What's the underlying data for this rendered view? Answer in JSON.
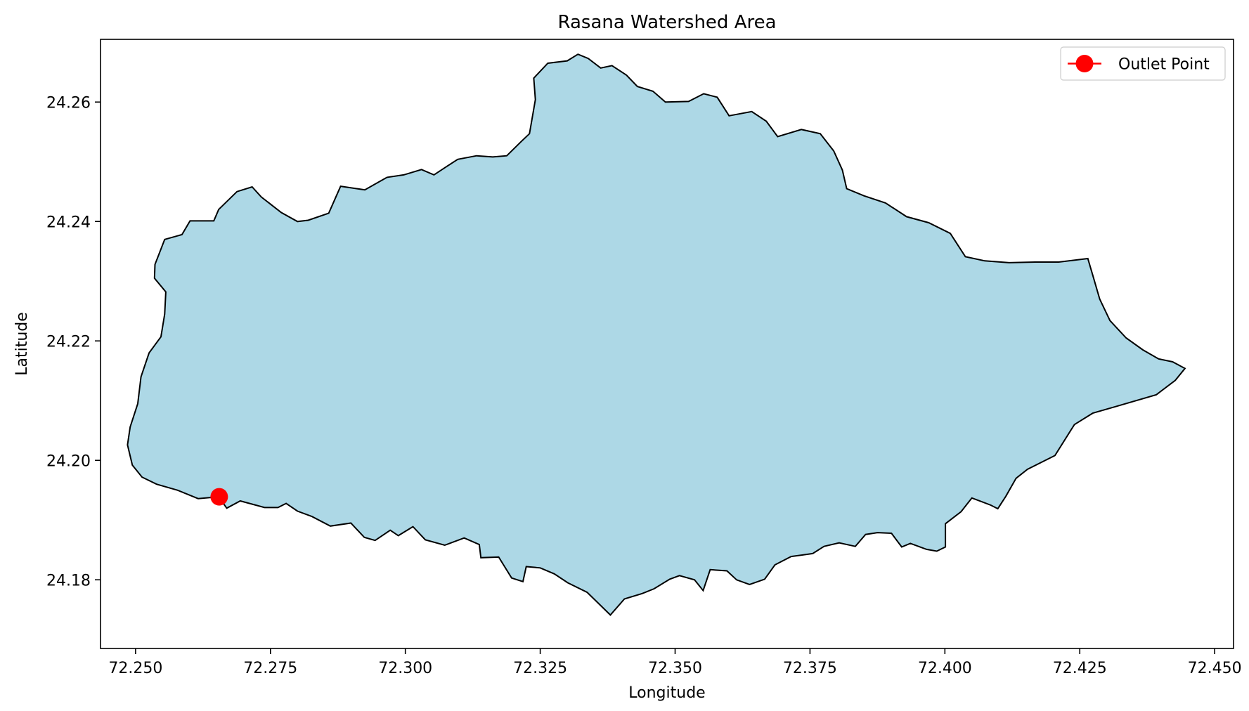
{
  "chart_data": {
    "type": "map",
    "title": "Rasana Watershed Area",
    "xlabel": "Longitude",
    "ylabel": "Latitude",
    "xlim": [
      72.2435,
      72.4535
    ],
    "ylim": [
      24.1685,
      24.2705
    ],
    "xticks": [
      72.25,
      72.275,
      72.3,
      72.325,
      72.35,
      72.375,
      72.4,
      72.425,
      72.45
    ],
    "xtick_labels": [
      "72.250",
      "72.275",
      "72.300",
      "72.325",
      "72.350",
      "72.375",
      "72.400",
      "72.425",
      "72.450"
    ],
    "yticks": [
      24.18,
      24.2,
      24.22,
      24.24,
      24.26
    ],
    "ytick_labels": [
      "24.18",
      "24.20",
      "24.22",
      "24.24",
      "24.26"
    ],
    "grid": false,
    "legend_position": "top-right",
    "watershed": {
      "fill_color": "#add8e6",
      "edge_color": "#000000",
      "boundary": [
        [
          72.2654,
          24.1939
        ],
        [
          72.2669,
          24.192
        ],
        [
          72.2694,
          24.1932
        ],
        [
          72.2739,
          24.1921
        ],
        [
          72.2764,
          24.1921
        ],
        [
          72.2779,
          24.1928
        ],
        [
          72.28,
          24.1915
        ],
        [
          72.2827,
          24.1906
        ],
        [
          72.2861,
          24.189
        ],
        [
          72.2899,
          24.1895
        ],
        [
          72.2924,
          24.1871
        ],
        [
          72.2944,
          24.1866
        ],
        [
          72.2972,
          24.1883
        ],
        [
          72.2987,
          24.1874
        ],
        [
          72.3014,
          24.1889
        ],
        [
          72.3037,
          24.1867
        ],
        [
          72.3073,
          24.1858
        ],
        [
          72.3109,
          24.187
        ],
        [
          72.3137,
          24.1859
        ],
        [
          72.314,
          24.1837
        ],
        [
          72.3173,
          24.1838
        ],
        [
          72.3197,
          24.1803
        ],
        [
          72.3218,
          24.1797
        ],
        [
          72.3224,
          24.1822
        ],
        [
          72.325,
          24.182
        ],
        [
          72.3276,
          24.181
        ],
        [
          72.3301,
          24.1795
        ],
        [
          72.3337,
          24.1779
        ],
        [
          72.338,
          24.1741
        ],
        [
          72.3406,
          24.1768
        ],
        [
          72.3439,
          24.1777
        ],
        [
          72.3461,
          24.1785
        ],
        [
          72.349,
          24.1801
        ],
        [
          72.3508,
          24.1807
        ],
        [
          72.3536,
          24.18
        ],
        [
          72.3552,
          24.1782
        ],
        [
          72.3565,
          24.1817
        ],
        [
          72.3596,
          24.1815
        ],
        [
          72.3614,
          24.18
        ],
        [
          72.3638,
          24.1792
        ],
        [
          72.3666,
          24.1801
        ],
        [
          72.3685,
          24.1825
        ],
        [
          72.3715,
          24.1839
        ],
        [
          72.3755,
          24.1844
        ],
        [
          72.3776,
          24.1856
        ],
        [
          72.3804,
          24.1862
        ],
        [
          72.3834,
          24.1856
        ],
        [
          72.3853,
          24.1876
        ],
        [
          72.3875,
          24.1879
        ],
        [
          72.3901,
          24.1878
        ],
        [
          72.392,
          24.1855
        ],
        [
          72.3936,
          24.1861
        ],
        [
          72.3966,
          24.1851
        ],
        [
          72.3985,
          24.1848
        ],
        [
          72.4001,
          24.1855
        ],
        [
          72.4001,
          24.1894
        ],
        [
          72.403,
          24.1914
        ],
        [
          72.405,
          24.1937
        ],
        [
          72.4085,
          24.1925
        ],
        [
          72.4098,
          24.1919
        ],
        [
          72.4113,
          24.194
        ],
        [
          72.4132,
          24.197
        ],
        [
          72.4153,
          24.1985
        ],
        [
          72.4204,
          24.2008
        ],
        [
          72.424,
          24.206
        ],
        [
          72.4274,
          24.2079
        ],
        [
          72.4316,
          24.209
        ],
        [
          72.4392,
          24.211
        ],
        [
          72.4427,
          24.2134
        ],
        [
          72.4445,
          24.2154
        ],
        [
          72.4422,
          24.2165
        ],
        [
          72.4396,
          24.217
        ],
        [
          72.4367,
          24.2185
        ],
        [
          72.4336,
          24.2205
        ],
        [
          72.4306,
          24.2234
        ],
        [
          72.4287,
          24.227
        ],
        [
          72.4274,
          24.231
        ],
        [
          72.4265,
          24.2338
        ],
        [
          72.4211,
          24.2332
        ],
        [
          72.4167,
          24.2332
        ],
        [
          72.4119,
          24.2331
        ],
        [
          72.4074,
          24.2334
        ],
        [
          72.4038,
          24.2341
        ],
        [
          72.401,
          24.238
        ],
        [
          72.397,
          24.2398
        ],
        [
          72.3929,
          24.2408
        ],
        [
          72.389,
          24.2431
        ],
        [
          72.385,
          24.2443
        ],
        [
          72.3818,
          24.2455
        ],
        [
          72.381,
          24.2486
        ],
        [
          72.3794,
          24.2518
        ],
        [
          72.3769,
          24.2547
        ],
        [
          72.3734,
          24.2554
        ],
        [
          72.369,
          24.2542
        ],
        [
          72.3669,
          24.2568
        ],
        [
          72.3642,
          24.2584
        ],
        [
          72.36,
          24.2577
        ],
        [
          72.3578,
          24.2608
        ],
        [
          72.3553,
          24.2614
        ],
        [
          72.3525,
          24.2601
        ],
        [
          72.3482,
          24.26
        ],
        [
          72.3459,
          24.2618
        ],
        [
          72.343,
          24.2626
        ],
        [
          72.341,
          24.2645
        ],
        [
          72.3383,
          24.2661
        ],
        [
          72.3362,
          24.2657
        ],
        [
          72.3339,
          24.2673
        ],
        [
          72.332,
          24.268
        ],
        [
          72.33,
          24.2669
        ],
        [
          72.3264,
          24.2665
        ],
        [
          72.3238,
          24.264
        ],
        [
          72.3241,
          24.2604
        ],
        [
          72.323,
          24.2547
        ],
        [
          72.3215,
          24.2534
        ],
        [
          72.3188,
          24.251
        ],
        [
          72.3162,
          24.2508
        ],
        [
          72.3132,
          24.251
        ],
        [
          72.3097,
          24.2504
        ],
        [
          72.3073,
          24.249
        ],
        [
          72.3053,
          24.2478
        ],
        [
          72.303,
          24.2487
        ],
        [
          72.2997,
          24.2478
        ],
        [
          72.2966,
          24.2474
        ],
        [
          72.2925,
          24.2453
        ],
        [
          72.288,
          24.2459
        ],
        [
          72.2858,
          24.2414
        ],
        [
          72.282,
          24.2402
        ],
        [
          72.28,
          24.24
        ],
        [
          72.277,
          24.2415
        ],
        [
          72.2733,
          24.2441
        ],
        [
          72.2716,
          24.2458
        ],
        [
          72.2688,
          24.245
        ],
        [
          72.2654,
          24.242
        ],
        [
          72.2645,
          24.2401
        ],
        [
          72.2601,
          24.2401
        ],
        [
          72.2586,
          24.2378
        ],
        [
          72.2554,
          24.237
        ],
        [
          72.2536,
          24.2328
        ],
        [
          72.2535,
          24.2305
        ],
        [
          72.2556,
          24.2282
        ],
        [
          72.2554,
          24.2245
        ],
        [
          72.2547,
          24.2207
        ],
        [
          72.2525,
          24.218
        ],
        [
          72.251,
          24.214
        ],
        [
          72.2504,
          24.2095
        ],
        [
          72.249,
          24.2056
        ],
        [
          72.2485,
          24.2026
        ],
        [
          72.2494,
          24.1992
        ],
        [
          72.2512,
          24.1972
        ],
        [
          72.2539,
          24.196
        ],
        [
          72.2578,
          24.195
        ],
        [
          72.2616,
          24.1936
        ],
        [
          72.2654,
          24.1939
        ]
      ]
    },
    "series": [
      {
        "name": "Outlet Point",
        "type": "point",
        "color": "#ff0000",
        "x": [
          72.2655
        ],
        "y": [
          24.1939
        ]
      }
    ]
  }
}
